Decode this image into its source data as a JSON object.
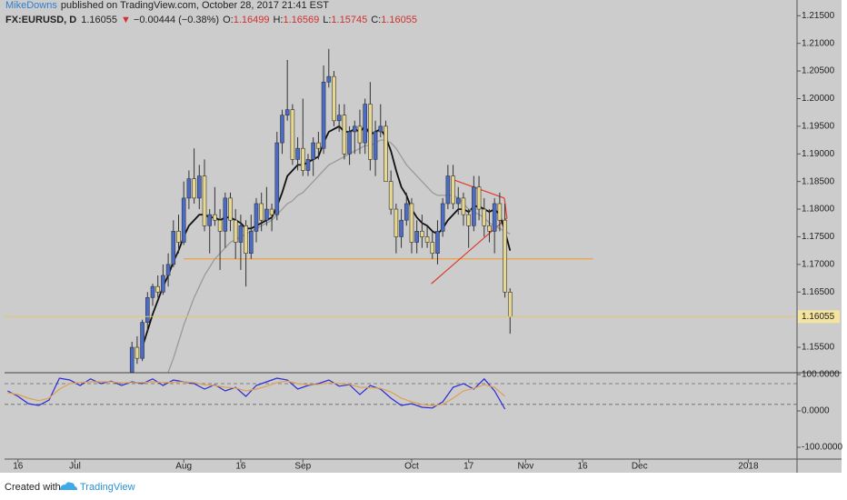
{
  "header": {
    "author": "MikeDowns",
    "published": "published on TradingView.com, October 28, 2017 21:41 EST",
    "symbol": "FX:EURUSD, D",
    "direction": "▼",
    "change": "−0.00444 (−0.38%)",
    "o": "O:",
    "h": "H:",
    "l": "L:",
    "c": "C:"
  },
  "footer": {
    "created": "Created with",
    "brand": "TradingView"
  },
  "chart_data": [
    {
      "type": "candlestick",
      "x": [
        22,
        23,
        24,
        25,
        26,
        27,
        28,
        29,
        30,
        31,
        32,
        33,
        34,
        35,
        36,
        37,
        38,
        39,
        40,
        41,
        42,
        43,
        44,
        45,
        46,
        47,
        48,
        49,
        50,
        51,
        52,
        53,
        54,
        55,
        56,
        57,
        58,
        59,
        60,
        61,
        62,
        63,
        64,
        65,
        66,
        67,
        68,
        69,
        70,
        71,
        72,
        73,
        74,
        75,
        76,
        77,
        78,
        79,
        80,
        81,
        82,
        83,
        84,
        85,
        86,
        87,
        88,
        89,
        90,
        91,
        92,
        93,
        94,
        95
      ],
      "open": [
        1.1505,
        1.155,
        1.153,
        1.1595,
        1.164,
        1.166,
        1.165,
        1.168,
        1.17,
        1.176,
        1.174,
        1.182,
        1.1855,
        1.182,
        1.186,
        1.177,
        1.179,
        1.178,
        1.176,
        1.182,
        1.178,
        1.174,
        1.177,
        1.172,
        1.176,
        1.181,
        1.178,
        1.18,
        1.179,
        1.192,
        1.197,
        1.198,
        1.189,
        1.191,
        1.187,
        1.189,
        1.192,
        1.191,
        1.203,
        1.204,
        1.196,
        1.197,
        1.19,
        1.194,
        1.195,
        1.192,
        1.199,
        1.189,
        1.194,
        1.195,
        1.185,
        1.18,
        1.175,
        1.178,
        1.181,
        1.174,
        1.176,
        1.175,
        1.174,
        1.172,
        1.176,
        1.181,
        1.186,
        1.181,
        1.182,
        1.179,
        1.177,
        1.184,
        1.18,
        1.177,
        1.176,
        1.181,
        1.178,
        1.16499
      ],
      "high": [
        1.156,
        1.157,
        1.16,
        1.165,
        1.1665,
        1.168,
        1.17,
        1.172,
        1.178,
        1.179,
        1.185,
        1.187,
        1.191,
        1.188,
        1.189,
        1.18,
        1.184,
        1.18,
        1.183,
        1.183,
        1.18,
        1.179,
        1.178,
        1.179,
        1.182,
        1.183,
        1.184,
        1.181,
        1.194,
        1.198,
        1.207,
        1.199,
        1.193,
        1.2,
        1.19,
        1.193,
        1.194,
        1.206,
        1.209,
        1.205,
        1.199,
        1.199,
        1.195,
        1.196,
        1.198,
        1.2,
        1.203,
        1.196,
        1.199,
        1.196,
        1.187,
        1.181,
        1.18,
        1.183,
        1.182,
        1.178,
        1.179,
        1.177,
        1.176,
        1.178,
        1.182,
        1.188,
        1.188,
        1.184,
        1.183,
        1.18,
        1.186,
        1.186,
        1.182,
        1.18,
        1.182,
        1.183,
        1.181,
        1.16569
      ],
      "low": [
        1.149,
        1.152,
        1.1525,
        1.158,
        1.1625,
        1.164,
        1.1645,
        1.166,
        1.1695,
        1.172,
        1.1735,
        1.18,
        1.181,
        1.18,
        1.176,
        1.172,
        1.177,
        1.169,
        1.173,
        1.176,
        1.171,
        1.169,
        1.166,
        1.171,
        1.174,
        1.176,
        1.177,
        1.176,
        1.178,
        1.19,
        1.196,
        1.188,
        1.187,
        1.186,
        1.186,
        1.186,
        1.189,
        1.19,
        1.202,
        1.195,
        1.194,
        1.189,
        1.188,
        1.19,
        1.19,
        1.19,
        1.187,
        1.186,
        1.193,
        1.185,
        1.179,
        1.172,
        1.173,
        1.177,
        1.172,
        1.172,
        1.173,
        1.173,
        1.171,
        1.17,
        1.175,
        1.18,
        1.18,
        1.179,
        1.177,
        1.173,
        1.176,
        1.178,
        1.175,
        1.174,
        1.172,
        1.176,
        1.164,
        1.15745
      ],
      "close": [
        1.155,
        1.153,
        1.1595,
        1.164,
        1.166,
        1.165,
        1.168,
        1.17,
        1.176,
        1.174,
        1.182,
        1.1855,
        1.182,
        1.186,
        1.177,
        1.179,
        1.178,
        1.176,
        1.182,
        1.178,
        1.174,
        1.177,
        1.172,
        1.176,
        1.181,
        1.178,
        1.18,
        1.179,
        1.192,
        1.197,
        1.198,
        1.189,
        1.191,
        1.187,
        1.189,
        1.192,
        1.191,
        1.203,
        1.204,
        1.196,
        1.197,
        1.19,
        1.194,
        1.195,
        1.192,
        1.199,
        1.189,
        1.194,
        1.195,
        1.185,
        1.18,
        1.175,
        1.178,
        1.181,
        1.174,
        1.176,
        1.175,
        1.174,
        1.172,
        1.176,
        1.181,
        1.186,
        1.181,
        1.182,
        1.179,
        1.177,
        1.184,
        1.18,
        1.177,
        1.176,
        1.181,
        1.178,
        1.165,
        1.16055
      ],
      "up_color": "#4a6cc8",
      "down_color": "#e7d891",
      "overlays": [
        {
          "color": "#111111",
          "values": [
            null,
            null,
            1.155,
            1.158,
            1.161,
            1.1635,
            1.166,
            1.168,
            1.1705,
            1.1725,
            1.175,
            1.177,
            1.178,
            1.179,
            1.179,
            1.1785,
            1.1785,
            1.178,
            1.1785,
            1.1785,
            1.178,
            1.1775,
            1.1765,
            1.1765,
            1.177,
            1.1775,
            1.178,
            1.1785,
            1.1805,
            1.183,
            1.186,
            1.187,
            1.188,
            1.188,
            1.1885,
            1.189,
            1.1895,
            1.192,
            1.194,
            1.1945,
            1.195,
            1.194,
            1.194,
            1.1945,
            1.194,
            1.195,
            1.1935,
            1.194,
            1.1945,
            1.193,
            1.1905,
            1.187,
            1.184,
            1.1825,
            1.18,
            1.1785,
            1.1775,
            1.177,
            1.176,
            1.1755,
            1.1765,
            1.178,
            1.179,
            1.18,
            1.18,
            1.1795,
            1.1805,
            1.1805,
            1.18,
            1.1795,
            1.18,
            1.179,
            1.176,
            1.1725
          ]
        },
        {
          "color": "#9a9a9a",
          "values": [
            null,
            null,
            null,
            null,
            null,
            null,
            null,
            1.1505,
            1.153,
            1.156,
            1.159,
            1.1615,
            1.164,
            1.166,
            1.168,
            1.1695,
            1.171,
            1.172,
            1.173,
            1.174,
            1.1745,
            1.175,
            1.1755,
            1.176,
            1.1765,
            1.177,
            1.1775,
            1.178,
            1.179,
            1.18,
            1.181,
            1.1815,
            1.1825,
            1.183,
            1.184,
            1.185,
            1.186,
            1.187,
            1.188,
            1.1885,
            1.189,
            1.1895,
            1.19,
            1.1905,
            1.191,
            1.1915,
            1.1915,
            1.192,
            1.1925,
            1.1925,
            1.192,
            1.191,
            1.1895,
            1.188,
            1.187,
            1.186,
            1.185,
            1.184,
            1.183,
            1.1825,
            1.1825,
            1.1825,
            1.1825,
            1.182,
            1.181,
            1.18,
            1.1795,
            1.179,
            1.1785,
            1.1775,
            1.177,
            1.1765,
            1.176,
            1.1755
          ]
        }
      ],
      "drawings": [
        {
          "color": "#f0a040",
          "points": [
            [
              32,
              1.171
            ],
            [
              111,
              1.171
            ]
          ]
        },
        {
          "color": "#e03a30",
          "points": [
            [
              79.8,
              1.1665
            ],
            [
              94.4,
              1.1784
            ]
          ]
        },
        {
          "color": "#e03a30",
          "points": [
            [
              83.8,
              1.1854
            ],
            [
              93.9,
              1.182
            ]
          ]
        },
        {
          "color": "#e03a30",
          "points": [
            [
              93.9,
              1.182
            ],
            [
              94.4,
              1.1784
            ]
          ]
        }
      ],
      "price_line_color": "#e8c46a",
      "xlim": [
        -2.6,
        150.4
      ],
      "ylim": [
        1.1504,
        1.2162
      ],
      "xticks": [
        {
          "value": 0,
          "label": "16"
        },
        {
          "value": 11,
          "label": "Jul"
        },
        {
          "value": 32,
          "label": "Aug"
        },
        {
          "value": 43,
          "label": "16"
        },
        {
          "value": 55,
          "label": "Sep"
        },
        {
          "value": 76,
          "label": "Oct"
        },
        {
          "value": 87,
          "label": "17"
        },
        {
          "value": 98,
          "label": "Nov"
        },
        {
          "value": 109,
          "label": "16"
        },
        {
          "value": 120,
          "label": "Dec"
        },
        {
          "value": 141,
          "label": "2018"
        }
      ],
      "yticks": [
        {
          "value": 1.155,
          "label": "1.15500"
        },
        {
          "value": 1.165,
          "label": "1.16500"
        },
        {
          "value": 1.17,
          "label": "1.17000"
        },
        {
          "value": 1.175,
          "label": "1.17500"
        },
        {
          "value": 1.18,
          "label": "1.18000"
        },
        {
          "value": 1.185,
          "label": "1.18500"
        },
        {
          "value": 1.19,
          "label": "1.19000"
        },
        {
          "value": 1.195,
          "label": "1.19500"
        },
        {
          "value": 1.2,
          "label": "1.20000"
        },
        {
          "value": 1.205,
          "label": "1.20500"
        },
        {
          "value": 1.21,
          "label": "1.21000"
        },
        {
          "value": 1.215,
          "label": "1.21500"
        }
      ],
      "grid": false
    },
    {
      "type": "line",
      "x": [
        -2,
        0,
        2,
        4,
        6,
        8,
        10,
        12,
        14,
        16,
        18,
        20,
        22,
        24,
        26,
        28,
        30,
        32,
        34,
        36,
        38,
        40,
        42,
        44,
        46,
        48,
        50,
        52,
        54,
        56,
        58,
        60,
        62,
        64,
        66,
        68,
        70,
        72,
        74,
        76,
        78,
        80,
        82,
        84,
        86,
        88,
        90,
        92,
        94
      ],
      "series": [
        {
          "color": "#2a2ad6",
          "values": [
            55,
            40,
            20,
            15,
            30,
            90,
            85,
            70,
            88,
            75,
            82,
            70,
            80,
            75,
            88,
            70,
            85,
            80,
            75,
            60,
            72,
            55,
            65,
            40,
            70,
            80,
            90,
            85,
            60,
            70,
            75,
            85,
            68,
            72,
            45,
            70,
            60,
            35,
            15,
            20,
            10,
            8,
            25,
            65,
            75,
            60,
            88,
            55,
            5
          ]
        },
        {
          "color": "#e0a050",
          "values": [
            50,
            45,
            35,
            28,
            35,
            60,
            75,
            78,
            80,
            80,
            80,
            77,
            78,
            78,
            80,
            78,
            79,
            80,
            78,
            72,
            70,
            65,
            63,
            55,
            60,
            68,
            78,
            82,
            75,
            72,
            73,
            77,
            75,
            73,
            65,
            64,
            62,
            52,
            35,
            25,
            18,
            14,
            18,
            35,
            55,
            62,
            72,
            65,
            40
          ]
        }
      ],
      "bands": [
        75,
        18
      ],
      "xlim": [
        -2.6,
        150.4
      ],
      "ylim": [
        -132.5,
        105
      ],
      "yticks": [
        {
          "value": 100,
          "label": "100.0000"
        },
        {
          "value": 0,
          "label": "0.0000"
        },
        {
          "value": -100,
          "label": "-100.0000"
        }
      ]
    }
  ]
}
